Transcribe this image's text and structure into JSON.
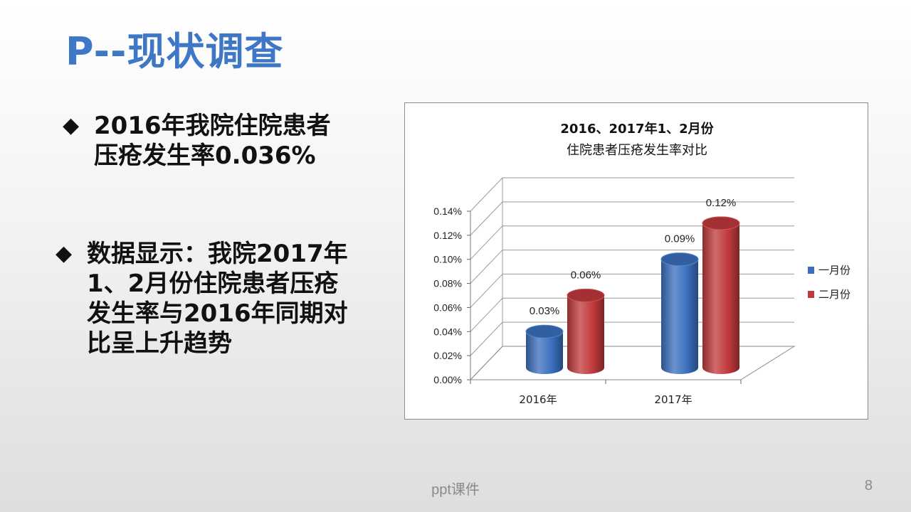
{
  "slide": {
    "title": "P--现状调查",
    "bullet_mark": "◆",
    "bullet1": "2016年我院住院患者\n压疮发生率0.036%",
    "bullet2": "数据显示：我院2017年\n1、2月份住院患者压疮\n发生率与2016年同期对\n比呈上升趋势",
    "footer": "ppt课件",
    "page_number": "8"
  },
  "chart_data": {
    "type": "bar",
    "title_lines": [
      "2016、2017年1、2月份",
      "住院患者压疮发生率对比"
    ],
    "categories": [
      "2016年",
      "2017年"
    ],
    "series": [
      {
        "name": "一月份",
        "values": [
          0.03,
          0.09
        ],
        "labels": [
          "0.03%",
          "0.09%"
        ],
        "color": "#3b6fbf"
      },
      {
        "name": "二月份",
        "values": [
          0.06,
          0.12
        ],
        "labels": [
          "0.06%",
          "0.12%"
        ],
        "color": "#c0393b"
      }
    ],
    "ylim": [
      0,
      0.14
    ],
    "yticks": [
      "0.00%",
      "0.02%",
      "0.04%",
      "0.06%",
      "0.08%",
      "0.10%",
      "0.12%",
      "0.14%"
    ],
    "grid": true,
    "legend_position": "right",
    "style": "3d-cylinder"
  }
}
